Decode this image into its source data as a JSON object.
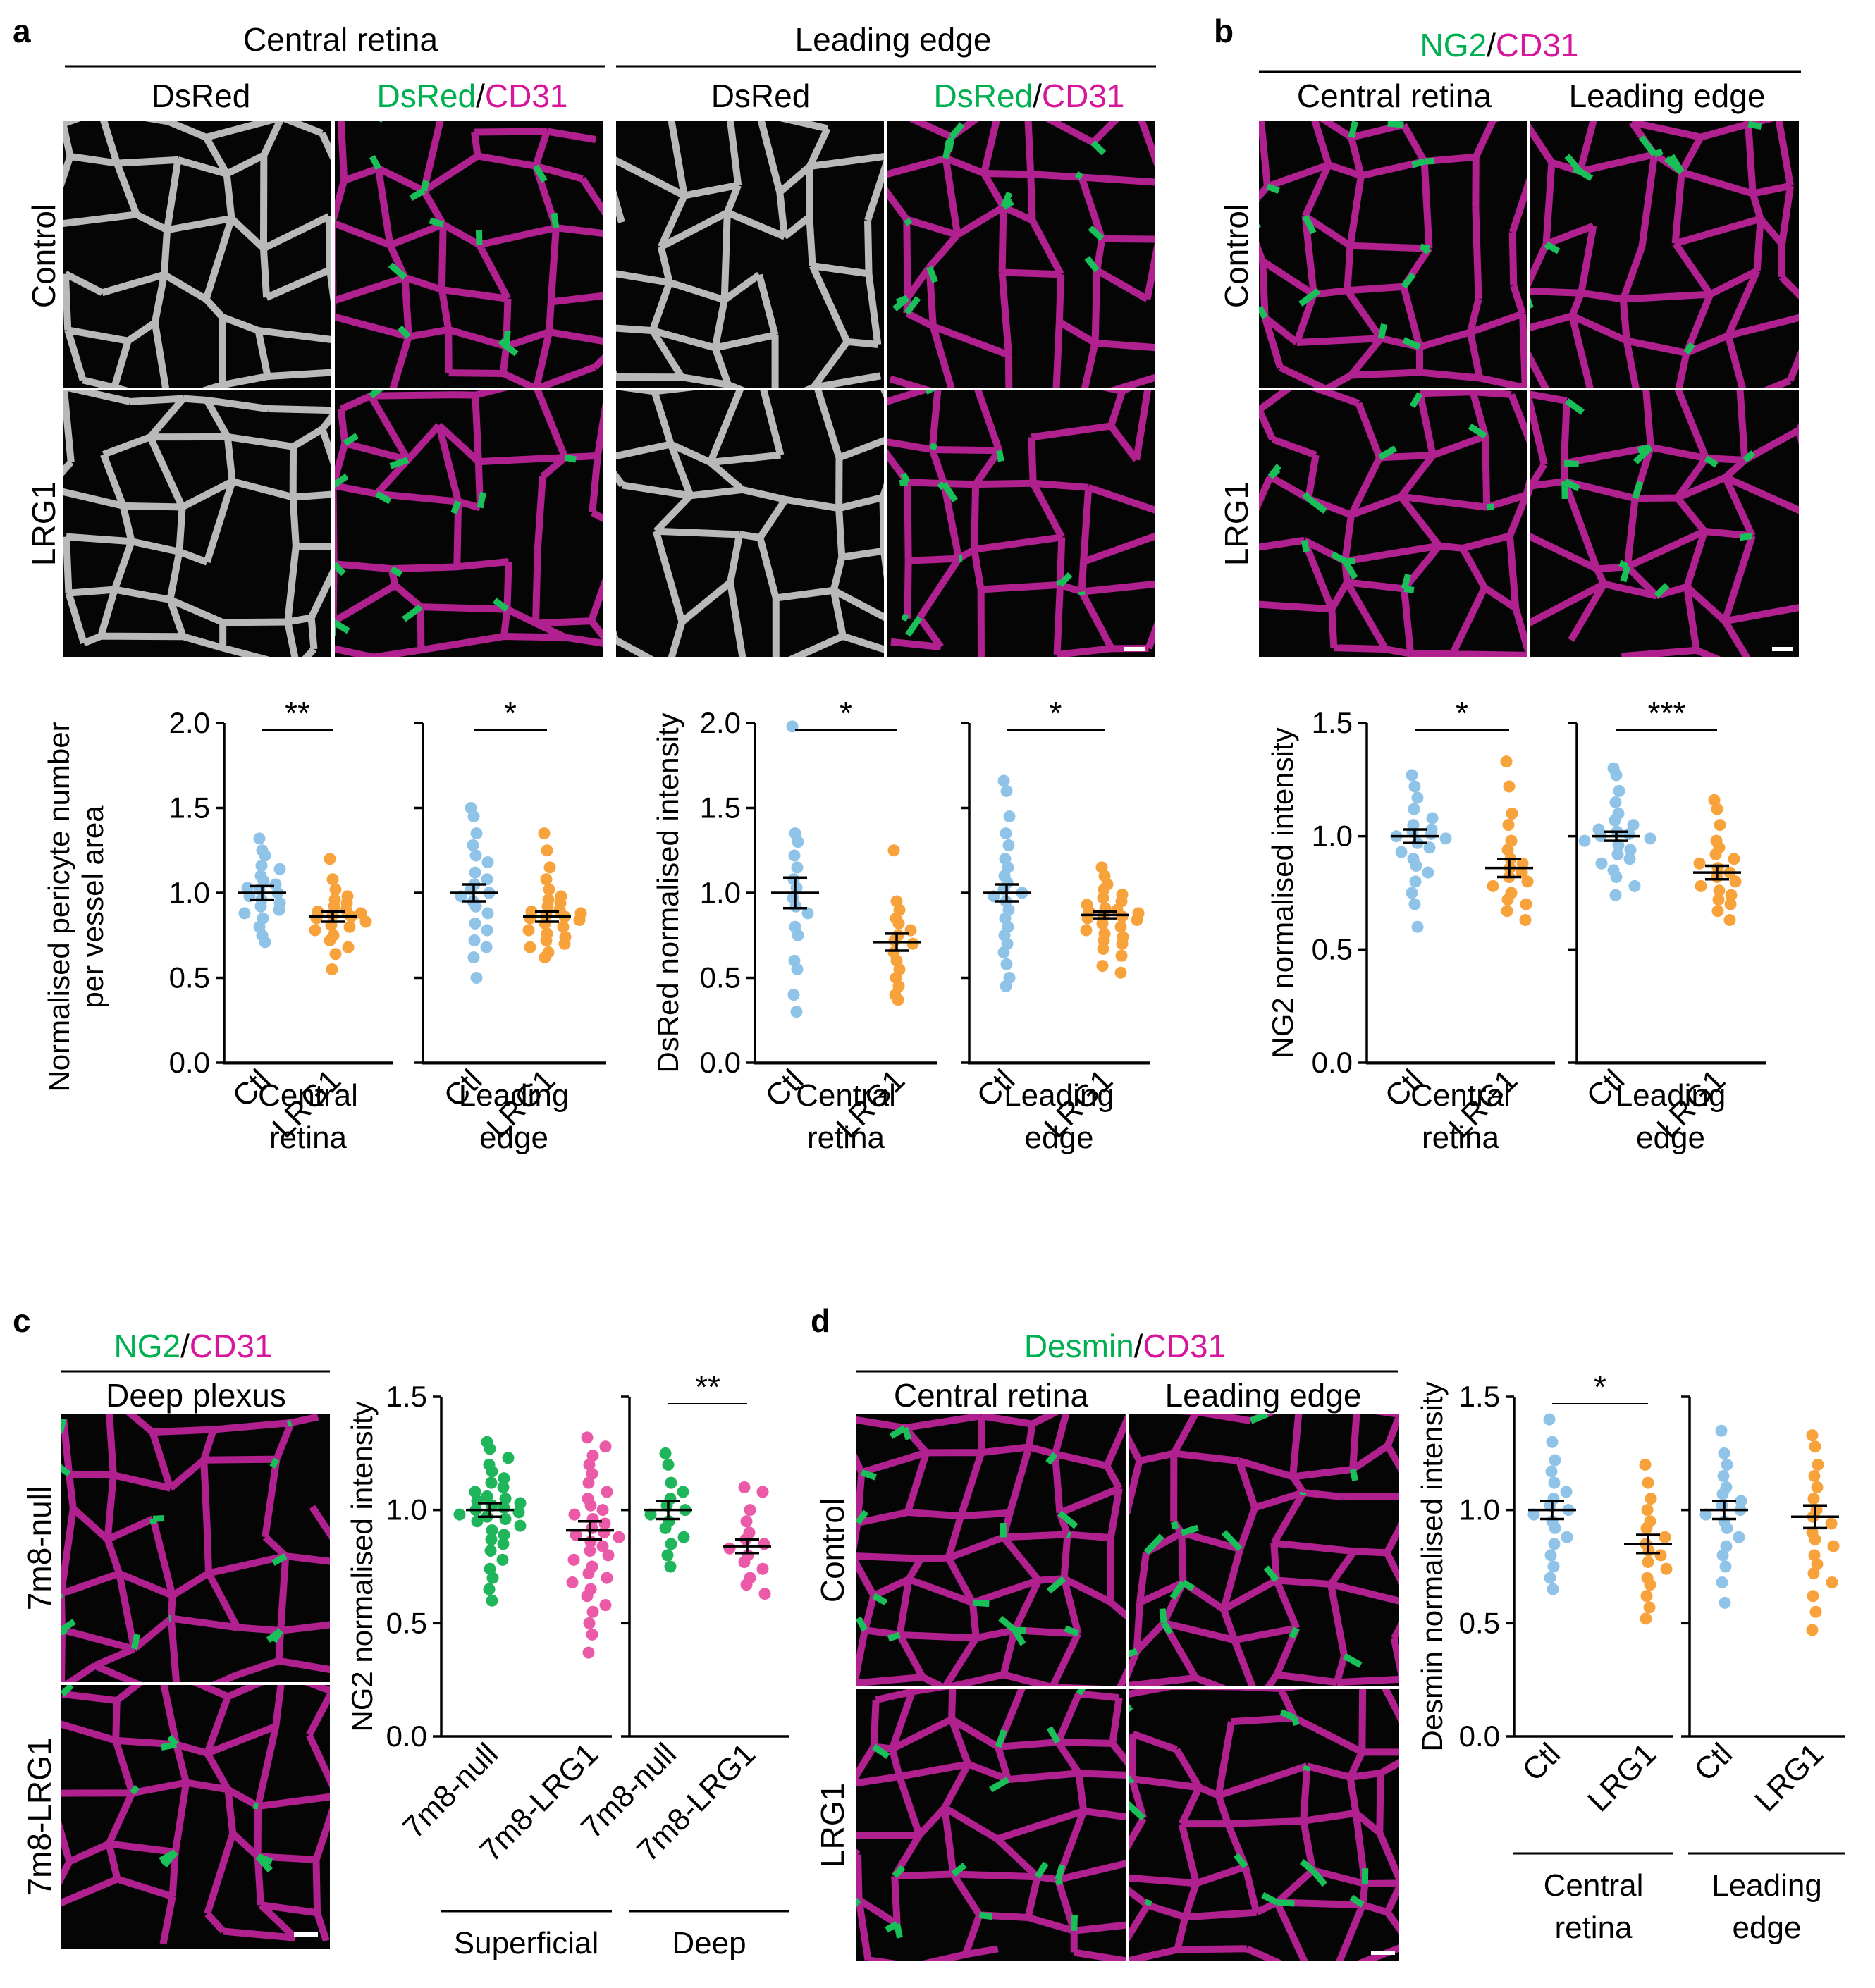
{
  "panels": {
    "a": {
      "letter": "a",
      "group_headers": [
        "Central retina",
        "Leading edge"
      ],
      "col_headers": [
        {
          "parts": [
            {
              "text": "DsRed",
              "color": "black"
            }
          ]
        },
        {
          "parts": [
            {
              "text": "DsRed",
              "color": "green"
            },
            {
              "text": "/",
              "color": "black"
            },
            {
              "text": "CD31",
              "color": "magenta"
            }
          ]
        },
        {
          "parts": [
            {
              "text": "DsRed",
              "color": "black"
            }
          ]
        },
        {
          "parts": [
            {
              "text": "DsRed",
              "color": "green"
            },
            {
              "text": "/",
              "color": "black"
            },
            {
              "text": "CD31",
              "color": "magenta"
            }
          ]
        }
      ],
      "row_labels": [
        "Control",
        "LRG1"
      ]
    },
    "b": {
      "letter": "b",
      "title_parts": [
        {
          "text": "NG2",
          "color": "green"
        },
        {
          "text": "/",
          "color": "black"
        },
        {
          "text": "CD31",
          "color": "magenta"
        }
      ],
      "col_headers": [
        "Central retina",
        "Leading edge"
      ],
      "row_labels": [
        "Control",
        "LRG1"
      ]
    },
    "c": {
      "letter": "c",
      "title_parts": [
        {
          "text": "NG2",
          "color": "green"
        },
        {
          "text": "/",
          "color": "black"
        },
        {
          "text": "CD31",
          "color": "magenta"
        }
      ],
      "col_header": "Deep plexus",
      "row_labels": [
        "7m8-null",
        "7m8-LRG1"
      ]
    },
    "d": {
      "letter": "d",
      "title_parts": [
        {
          "text": "Desmin",
          "color": "green"
        },
        {
          "text": "/",
          "color": "black"
        },
        {
          "text": "CD31",
          "color": "magenta"
        }
      ],
      "col_headers": [
        "Central retina",
        "Leading edge"
      ],
      "row_labels": [
        "Control",
        "LRG1"
      ]
    }
  },
  "colors": {
    "green": "#00b050",
    "magenta": "#d6169c",
    "black": "#000000",
    "ctl_dot": "#8fc3e8",
    "lrg1_dot": "#f8a23c",
    "null_dot": "#1fb55a",
    "lrg1_c_dot": "#ea5aa8"
  },
  "chart_data": [
    {
      "id": "a-pericyte",
      "type": "scatter",
      "ylabel_lines": [
        "Normalised pericyte number",
        "per vessel area"
      ],
      "ylim": [
        0,
        2.0
      ],
      "yticks": [
        "0.0",
        "0.5",
        "1.0",
        "1.5",
        "2.0"
      ],
      "groups": [
        {
          "name": "Central retina",
          "name_lines": [
            "Central",
            "retina"
          ],
          "significance": "**",
          "categories": [
            "Ctl",
            "LRG1"
          ],
          "series": [
            {
              "category": "Ctl",
              "color_key": "ctl_dot",
              "mean": 1.0,
              "sem": 0.04,
              "values": [
                1.32,
                1.25,
                1.22,
                1.16,
                1.14,
                1.1,
                1.07,
                1.05,
                1.03,
                1.02,
                1.0,
                0.98,
                0.96,
                0.94,
                0.92,
                0.9,
                0.88,
                0.85,
                0.8,
                0.75,
                0.71
              ]
            },
            {
              "category": "LRG1",
              "color_key": "lrg1_dot",
              "mean": 0.86,
              "sem": 0.03,
              "values": [
                1.2,
                1.08,
                1.02,
                0.98,
                0.96,
                0.94,
                0.92,
                0.9,
                0.89,
                0.88,
                0.87,
                0.86,
                0.85,
                0.83,
                0.81,
                0.8,
                0.78,
                0.75,
                0.72,
                0.68,
                0.64,
                0.55
              ]
            }
          ]
        },
        {
          "name": "Leading edge",
          "name_lines": [
            "Leading",
            "edge"
          ],
          "significance": "*",
          "categories": [
            "Ctl",
            "LRG1"
          ],
          "series": [
            {
              "category": "Ctl",
              "color_key": "ctl_dot",
              "mean": 1.0,
              "sem": 0.05,
              "values": [
                1.5,
                1.45,
                1.35,
                1.28,
                1.22,
                1.18,
                1.12,
                1.08,
                1.05,
                1.02,
                1.0,
                0.98,
                0.95,
                0.92,
                0.88,
                0.82,
                0.78,
                0.72,
                0.68,
                0.62,
                0.5
              ]
            },
            {
              "category": "LRG1",
              "color_key": "lrg1_dot",
              "mean": 0.86,
              "sem": 0.03,
              "values": [
                1.35,
                1.25,
                1.15,
                1.08,
                1.02,
                0.98,
                0.96,
                0.94,
                0.92,
                0.9,
                0.89,
                0.88,
                0.87,
                0.86,
                0.85,
                0.84,
                0.82,
                0.8,
                0.78,
                0.76,
                0.74,
                0.72,
                0.7,
                0.68,
                0.65,
                0.62
              ]
            }
          ]
        }
      ]
    },
    {
      "id": "a-dsred",
      "type": "scatter",
      "ylabel_lines": [
        "DsRed normalised intensity"
      ],
      "ylim": [
        0,
        2.0
      ],
      "yticks": [
        "0.0",
        "0.5",
        "1.0",
        "1.5",
        "2.0"
      ],
      "groups": [
        {
          "name": "Central retina",
          "name_lines": [
            "Central",
            "retina"
          ],
          "significance": "*",
          "categories": [
            "Ctl",
            "LRG1"
          ],
          "series": [
            {
              "category": "Ctl",
              "color_key": "ctl_dot",
              "mean": 1.0,
              "sem": 0.09,
              "values": [
                1.98,
                1.35,
                1.3,
                1.22,
                1.15,
                1.08,
                1.03,
                0.97,
                0.92,
                0.88,
                0.8,
                0.75,
                0.6,
                0.55,
                0.4,
                0.3
              ]
            },
            {
              "category": "LRG1",
              "color_key": "lrg1_dot",
              "mean": 0.71,
              "sem": 0.05,
              "values": [
                1.25,
                0.95,
                0.9,
                0.85,
                0.82,
                0.78,
                0.75,
                0.72,
                0.7,
                0.65,
                0.6,
                0.55,
                0.5,
                0.45,
                0.4,
                0.37
              ]
            }
          ]
        },
        {
          "name": "Leading edge",
          "name_lines": [
            "Leading",
            "edge"
          ],
          "significance": "*",
          "categories": [
            "Ctl",
            "LRG1"
          ],
          "series": [
            {
              "category": "Ctl",
              "color_key": "ctl_dot",
              "mean": 1.0,
              "sem": 0.05,
              "values": [
                1.66,
                1.6,
                1.45,
                1.35,
                1.28,
                1.2,
                1.15,
                1.1,
                1.06,
                1.02,
                1.0,
                0.98,
                0.95,
                0.9,
                0.85,
                0.8,
                0.75,
                0.7,
                0.65,
                0.58,
                0.5,
                0.45
              ]
            },
            {
              "category": "LRG1",
              "color_key": "lrg1_dot",
              "mean": 0.87,
              "sem": 0.02,
              "values": [
                1.15,
                1.1,
                1.05,
                1.02,
                0.99,
                0.97,
                0.95,
                0.93,
                0.91,
                0.9,
                0.89,
                0.88,
                0.87,
                0.86,
                0.85,
                0.84,
                0.82,
                0.8,
                0.78,
                0.76,
                0.74,
                0.72,
                0.7,
                0.67,
                0.63,
                0.57,
                0.53
              ]
            }
          ]
        }
      ]
    },
    {
      "id": "b-ng2",
      "type": "scatter",
      "ylabel_lines": [
        "NG2 normalised intensity"
      ],
      "ylim": [
        0,
        1.5
      ],
      "yticks": [
        "0.0",
        "0.5",
        "1.0",
        "1.5"
      ],
      "groups": [
        {
          "name": "Central retina",
          "name_lines": [
            "Central",
            "retina"
          ],
          "significance": "*",
          "categories": [
            "Ctl",
            "LRG1"
          ],
          "series": [
            {
              "category": "Ctl",
              "color_key": "ctl_dot",
              "mean": 1.0,
              "sem": 0.03,
              "values": [
                1.27,
                1.22,
                1.17,
                1.12,
                1.08,
                1.05,
                1.03,
                1.02,
                1.01,
                1.0,
                0.99,
                0.97,
                0.95,
                0.93,
                0.9,
                0.87,
                0.84,
                0.8,
                0.75,
                0.7,
                0.6
              ]
            },
            {
              "category": "LRG1",
              "color_key": "lrg1_dot",
              "mean": 0.86,
              "sem": 0.04,
              "values": [
                1.33,
                1.22,
                1.1,
                1.05,
                0.98,
                0.94,
                0.9,
                0.88,
                0.86,
                0.84,
                0.82,
                0.8,
                0.78,
                0.75,
                0.72,
                0.7,
                0.67,
                0.63
              ]
            }
          ]
        },
        {
          "name": "Leading edge",
          "name_lines": [
            "Leading",
            "edge"
          ],
          "significance": "***",
          "categories": [
            "Ctl",
            "LRG1"
          ],
          "series": [
            {
              "category": "Ctl",
              "color_key": "ctl_dot",
              "mean": 1.0,
              "sem": 0.02,
              "values": [
                1.3,
                1.27,
                1.2,
                1.15,
                1.1,
                1.07,
                1.05,
                1.03,
                1.02,
                1.01,
                1.0,
                0.99,
                0.98,
                0.96,
                0.94,
                0.92,
                0.9,
                0.88,
                0.85,
                0.82,
                0.78,
                0.74
              ]
            },
            {
              "category": "LRG1",
              "color_key": "lrg1_dot",
              "mean": 0.84,
              "sem": 0.03,
              "values": [
                1.16,
                1.12,
                1.05,
                0.98,
                0.95,
                0.92,
                0.9,
                0.88,
                0.86,
                0.84,
                0.82,
                0.8,
                0.78,
                0.76,
                0.74,
                0.72,
                0.7,
                0.67,
                0.63
              ]
            }
          ]
        }
      ]
    },
    {
      "id": "c-ng2",
      "type": "scatter",
      "ylabel_lines": [
        "NG2 normalised intensity"
      ],
      "ylim": [
        0,
        1.5
      ],
      "yticks": [
        "0.0",
        "0.5",
        "1.0",
        "1.5"
      ],
      "groups": [
        {
          "name": "Superficial",
          "name_lines": [
            "Superficial"
          ],
          "significance": "",
          "categories": [
            "7m8-null",
            "7m8-LRG1"
          ],
          "series": [
            {
              "category": "7m8-null",
              "color_key": "null_dot",
              "mean": 1.0,
              "sem": 0.03,
              "values": [
                1.3,
                1.27,
                1.23,
                1.2,
                1.17,
                1.14,
                1.12,
                1.1,
                1.08,
                1.06,
                1.05,
                1.04,
                1.03,
                1.02,
                1.01,
                1.0,
                0.99,
                0.98,
                0.97,
                0.96,
                0.95,
                0.93,
                0.91,
                0.89,
                0.87,
                0.85,
                0.82,
                0.78,
                0.74,
                0.7,
                0.65,
                0.6
              ]
            },
            {
              "category": "7m8-LRG1",
              "color_key": "lrg1_c_dot",
              "mean": 0.91,
              "sem": 0.04,
              "values": [
                1.32,
                1.28,
                1.24,
                1.2,
                1.16,
                1.12,
                1.08,
                1.05,
                1.02,
                1.0,
                0.98,
                0.96,
                0.94,
                0.92,
                0.9,
                0.89,
                0.88,
                0.86,
                0.84,
                0.82,
                0.8,
                0.78,
                0.75,
                0.72,
                0.7,
                0.68,
                0.65,
                0.62,
                0.58,
                0.55,
                0.5,
                0.45,
                0.37
              ]
            }
          ]
        },
        {
          "name": "Deep",
          "name_lines": [
            "Deep"
          ],
          "significance": "**",
          "categories": [
            "7m8-null",
            "7m8-LRG1"
          ],
          "series": [
            {
              "category": "7m8-null",
              "color_key": "null_dot",
              "mean": 1.0,
              "sem": 0.04,
              "values": [
                1.25,
                1.2,
                1.12,
                1.08,
                1.05,
                1.02,
                1.0,
                0.98,
                0.95,
                0.92,
                0.88,
                0.85,
                0.8,
                0.75
              ]
            },
            {
              "category": "7m8-LRG1",
              "color_key": "lrg1_c_dot",
              "mean": 0.84,
              "sem": 0.03,
              "values": [
                1.1,
                1.08,
                1.0,
                0.95,
                0.9,
                0.87,
                0.85,
                0.83,
                0.8,
                0.77,
                0.74,
                0.7,
                0.67,
                0.63
              ]
            }
          ]
        }
      ]
    },
    {
      "id": "d-desmin",
      "type": "scatter",
      "ylabel_lines": [
        "Desmin normalised intensity"
      ],
      "ylim": [
        0,
        1.5
      ],
      "yticks": [
        "0.0",
        "0.5",
        "1.0",
        "1.5"
      ],
      "groups": [
        {
          "name": "Central retina",
          "name_lines": [
            "Central",
            "retina"
          ],
          "significance": "*",
          "categories": [
            "Ctl",
            "LRG1"
          ],
          "series": [
            {
              "category": "Ctl",
              "color_key": "ctl_dot",
              "mean": 1.0,
              "sem": 0.04,
              "values": [
                1.4,
                1.3,
                1.22,
                1.17,
                1.12,
                1.08,
                1.05,
                1.02,
                1.0,
                0.98,
                0.95,
                0.92,
                0.88,
                0.85,
                0.8,
                0.75,
                0.7,
                0.65
              ]
            },
            {
              "category": "LRG1",
              "color_key": "lrg1_dot",
              "mean": 0.85,
              "sem": 0.04,
              "values": [
                1.2,
                1.12,
                1.05,
                1.0,
                0.95,
                0.92,
                0.88,
                0.85,
                0.82,
                0.8,
                0.77,
                0.74,
                0.7,
                0.67,
                0.62,
                0.57,
                0.52
              ]
            }
          ]
        },
        {
          "name": "Leading edge",
          "name_lines": [
            "Leading",
            "edge"
          ],
          "significance": "",
          "categories": [
            "Ctl",
            "LRG1"
          ],
          "series": [
            {
              "category": "Ctl",
              "color_key": "ctl_dot",
              "mean": 1.0,
              "sem": 0.04,
              "values": [
                1.35,
                1.25,
                1.2,
                1.15,
                1.1,
                1.07,
                1.04,
                1.02,
                1.0,
                0.98,
                0.95,
                0.92,
                0.88,
                0.84,
                0.8,
                0.75,
                0.68,
                0.59
              ]
            },
            {
              "category": "LRG1",
              "color_key": "lrg1_dot",
              "mean": 0.97,
              "sem": 0.05,
              "values": [
                1.33,
                1.28,
                1.2,
                1.15,
                1.1,
                1.05,
                1.0,
                0.97,
                0.94,
                0.9,
                0.87,
                0.84,
                0.8,
                0.76,
                0.72,
                0.68,
                0.62,
                0.55,
                0.47
              ]
            }
          ]
        }
      ]
    }
  ]
}
